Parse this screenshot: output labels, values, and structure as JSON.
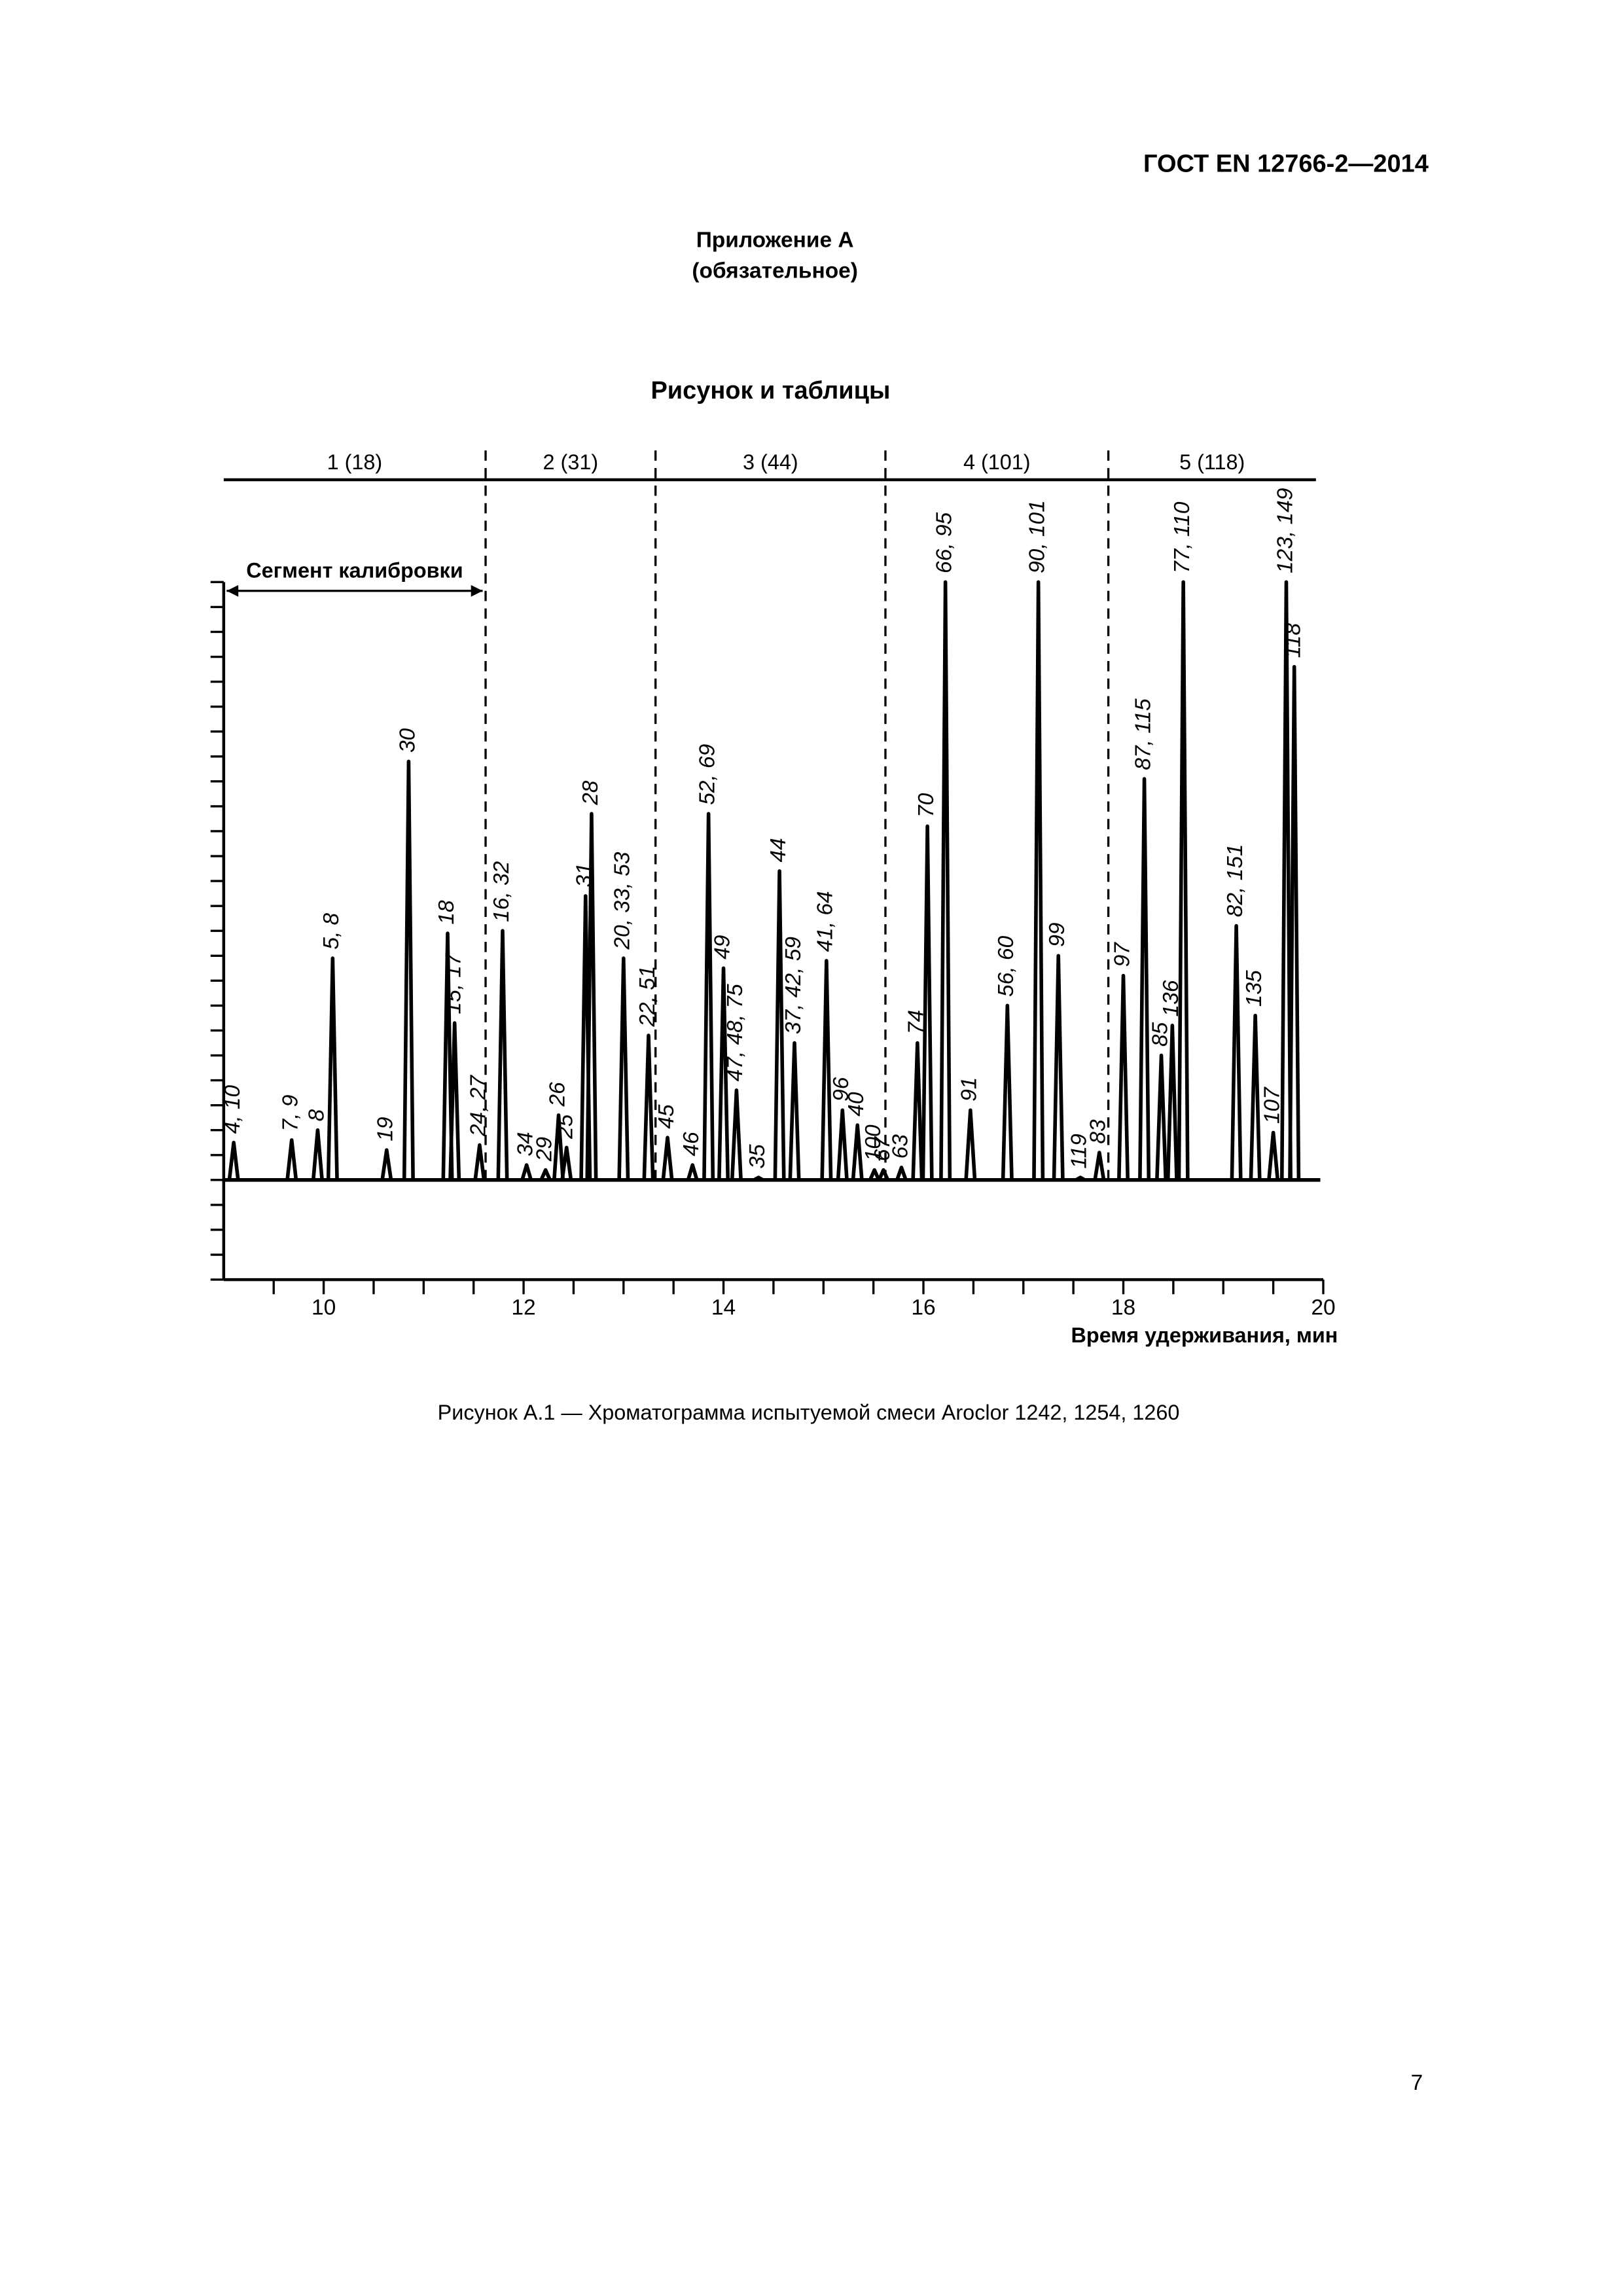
{
  "header": {
    "code": "ГОСТ EN 12766-2—2014"
  },
  "appendix": {
    "title": "Приложение А",
    "status": "(обязательное)"
  },
  "section_title": "Рисунок и таблицы",
  "chart_data": {
    "type": "chromatogram",
    "xlabel": "Время удерживания, мин",
    "xlim": [
      9,
      20
    ],
    "xticks": [
      10,
      12,
      14,
      16,
      18,
      20
    ],
    "x_minor_ticks": [
      9.5,
      10.5,
      11,
      11.5,
      12.5,
      13,
      13.5,
      14.5,
      15,
      15.5,
      16.5,
      17,
      17.5,
      18.5,
      19,
      19.5
    ],
    "ylim": [
      -4,
      24
    ],
    "yticks": [
      -4,
      -3,
      -2,
      -1,
      0,
      1,
      2,
      3,
      4,
      5,
      6,
      7,
      8,
      9,
      10,
      11,
      12,
      13,
      14,
      15,
      16,
      17,
      18,
      19,
      20,
      21,
      22,
      23,
      24
    ],
    "color": "#000000",
    "segments": {
      "labels": [
        "1 (18)",
        "2 (31)",
        "3 (44)",
        "4 (101)",
        "5 (118)"
      ],
      "boundaries": [
        11.62,
        13.32,
        15.62,
        17.85
      ]
    },
    "calibration_label": "Сегмент калибровки",
    "peaks": {
      "labels": [
        "4, 10",
        "7, 9",
        "8",
        "5, 8",
        "19",
        "30",
        "18",
        "15, 17",
        "24, 27",
        "16, 32",
        "34",
        "29",
        "26",
        "25",
        "31",
        "28",
        "20, 33, 53",
        "22, 51",
        "45",
        "46",
        "52, 69",
        "49",
        "47, 48, 75",
        "35",
        "44",
        "37, 42, 59",
        "41, 64",
        "96",
        "40",
        "100",
        "67",
        "63",
        "74",
        "70",
        "66, 95",
        "91",
        "56, 60",
        "90, 101",
        "99",
        "119",
        "83",
        "97",
        "87, 115",
        "85",
        "136",
        "77, 110",
        "82, 151",
        "135",
        "107",
        "123, 149",
        "118"
      ],
      "x": [
        9.1,
        9.68,
        9.94,
        10.09,
        10.63,
        10.85,
        11.24,
        11.31,
        11.56,
        11.79,
        12.03,
        12.22,
        12.35,
        12.43,
        12.62,
        12.68,
        13.0,
        13.25,
        13.44,
        13.69,
        13.85,
        14.0,
        14.13,
        14.35,
        14.56,
        14.71,
        15.03,
        15.19,
        15.34,
        15.51,
        15.6,
        15.78,
        15.94,
        16.04,
        16.22,
        16.47,
        16.84,
        17.15,
        17.35,
        17.57,
        17.76,
        18.0,
        18.21,
        18.38,
        18.49,
        18.6,
        19.13,
        19.32,
        19.5,
        19.63,
        19.71
      ],
      "values": [
        1.5,
        1.6,
        2.0,
        8.9,
        1.2,
        16.8,
        9.9,
        6.3,
        1.4,
        10.0,
        0.6,
        0.4,
        2.6,
        1.3,
        11.4,
        14.7,
        8.9,
        5.8,
        1.7,
        0.6,
        14.7,
        8.5,
        3.6,
        0.1,
        12.4,
        5.5,
        8.8,
        2.8,
        2.2,
        0.4,
        0.4,
        0.5,
        5.5,
        14.2,
        24,
        2.8,
        7.0,
        24,
        9.0,
        0.1,
        1.1,
        8.2,
        16.1,
        5.0,
        6.2,
        24,
        10.2,
        6.6,
        1.9,
        24,
        20.6
      ]
    }
  },
  "caption": "Рисунок А.1 — Хроматограмма испытуемой смеси Aroclor 1242, 1254, 1260",
  "page_number": "7"
}
